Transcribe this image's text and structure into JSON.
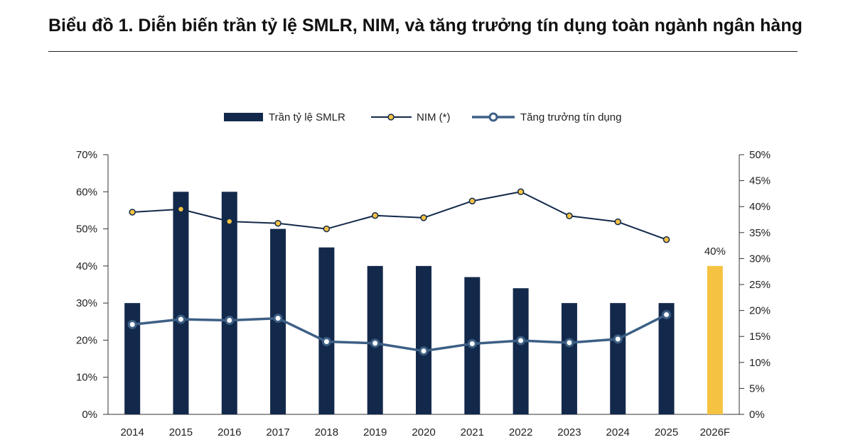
{
  "title": "Biểu đồ 1. Diễn biến trần tỷ lệ SMLR, NIM, và tăng trưởng tín dụng toàn ngành ngân hàng",
  "colors": {
    "bar": "#13294b",
    "bar_forecast": "#f5c242",
    "nim_line": "#13294b",
    "nim_marker": "#f5c242",
    "credit_line": "#3d5f85",
    "credit_marker_fill": "#ffffff"
  },
  "chart_data": {
    "type": "bar",
    "categories": [
      "2014",
      "2015",
      "2016",
      "2017",
      "2018",
      "2019",
      "2020",
      "2021",
      "2022",
      "2023",
      "2024",
      "2025",
      "2026F"
    ],
    "left_axis": {
      "min": 0,
      "max": 70,
      "step": 10,
      "tick_labels": [
        "0%",
        "10%",
        "20%",
        "30%",
        "40%",
        "50%",
        "60%",
        "70%"
      ]
    },
    "right_axis": {
      "min": 0,
      "max": 50,
      "step": 5,
      "tick_labels": [
        "0%",
        "5%",
        "10%",
        "15%",
        "20%",
        "25%",
        "30%",
        "35%",
        "40%",
        "45%",
        "50%"
      ]
    },
    "series": [
      {
        "name": "Trần tỷ lệ SMLR",
        "type": "bar",
        "axis": "left",
        "values": [
          30,
          60,
          60,
          50,
          45,
          40,
          40,
          37,
          34,
          30,
          30,
          30,
          40
        ]
      },
      {
        "name": "NIM (*)",
        "type": "line",
        "axis": "left",
        "values": [
          54.5,
          55.3,
          52.0,
          51.5,
          50.0,
          53.6,
          53.0,
          57.5,
          60.0,
          53.5,
          51.9,
          47.1,
          null
        ]
      },
      {
        "name": "Tăng trưởng tín dụng",
        "type": "line",
        "axis": "right",
        "values": [
          17.3,
          18.3,
          18.1,
          18.5,
          14.0,
          13.7,
          12.2,
          13.6,
          14.2,
          13.8,
          14.5,
          19.2,
          null
        ]
      }
    ],
    "data_labels": [
      {
        "category": "2026F",
        "text": "40%"
      }
    ],
    "legend_position": "top-center",
    "grid": false
  }
}
